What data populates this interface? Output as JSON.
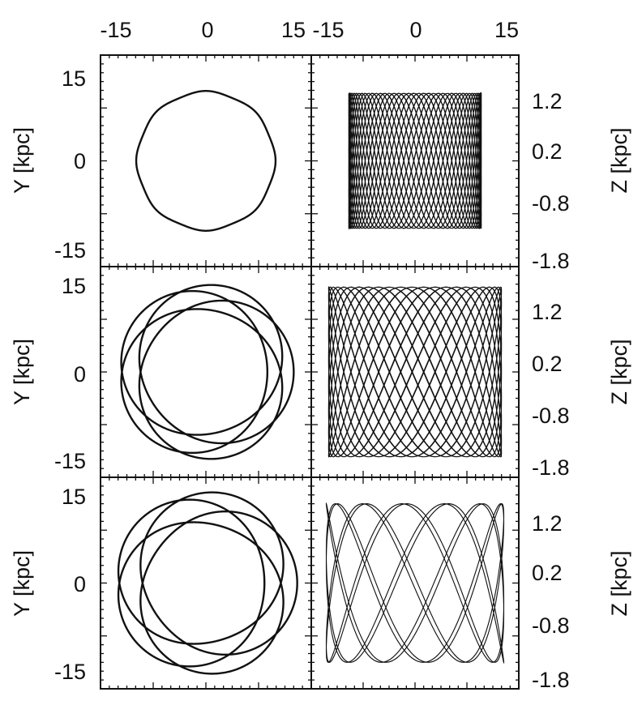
{
  "chart_data": {
    "type": "line",
    "title": "",
    "layout": {
      "rows": 3,
      "cols": 2
    },
    "x_axis": {
      "position": "top",
      "left_ticks": [
        "-15",
        "0",
        "15"
      ],
      "right_ticks": [
        "-15",
        "0",
        "15"
      ],
      "left_xlim": [
        -18,
        18
      ],
      "right_xlim": [
        -18,
        18
      ]
    },
    "left_y_axis": {
      "label": "Y [kpc]",
      "ylim": [
        -18,
        18
      ],
      "ticks": [
        "15",
        "0",
        "-15"
      ]
    },
    "right_y_axis": {
      "label": "Z [kpc]",
      "ylim": [
        -1.8,
        1.8
      ],
      "ticks": [
        "1.2",
        "0.2",
        "-0.8",
        "-1.8"
      ]
    },
    "grid": false,
    "panels": [
      {
        "row": 0,
        "col": 0,
        "type": "line",
        "series": [
          {
            "orbit": "x-y",
            "radius_range": [
              11.6,
              11.9
            ],
            "apocenter_rotations": 1
          }
        ]
      },
      {
        "row": 0,
        "col": 1,
        "type": "line",
        "series": [
          {
            "orbit": "x-z",
            "x_range": [
              -11.5,
              11.5
            ],
            "z_range": [
              -1.15,
              1.15
            ],
            "frequency_ratio": 4.15
          }
        ]
      },
      {
        "row": 1,
        "col": 0,
        "type": "line",
        "series": [
          {
            "orbit": "x-y",
            "radius_range": [
              10.5,
              15.0
            ],
            "apocenter_rotations": 4
          }
        ]
      },
      {
        "row": 1,
        "col": 1,
        "type": "line",
        "series": [
          {
            "orbit": "x-z",
            "x_range": [
              -15.0,
              15.0
            ],
            "z_range": [
              -1.45,
              1.45
            ],
            "frequency_ratio": 2.35
          }
        ]
      },
      {
        "row": 2,
        "col": 0,
        "type": "line",
        "series": [
          {
            "orbit": "x-y",
            "radius_range": [
              10.0,
              15.6
            ],
            "apocenter_rotations": 4
          }
        ]
      },
      {
        "row": 2,
        "col": 1,
        "type": "line",
        "series": [
          {
            "orbit": "x-z",
            "x_range": [
              -15.4,
              15.4
            ],
            "z_range": [
              -1.35,
              1.35
            ],
            "frequency_ratio": 2.6
          }
        ]
      }
    ]
  }
}
